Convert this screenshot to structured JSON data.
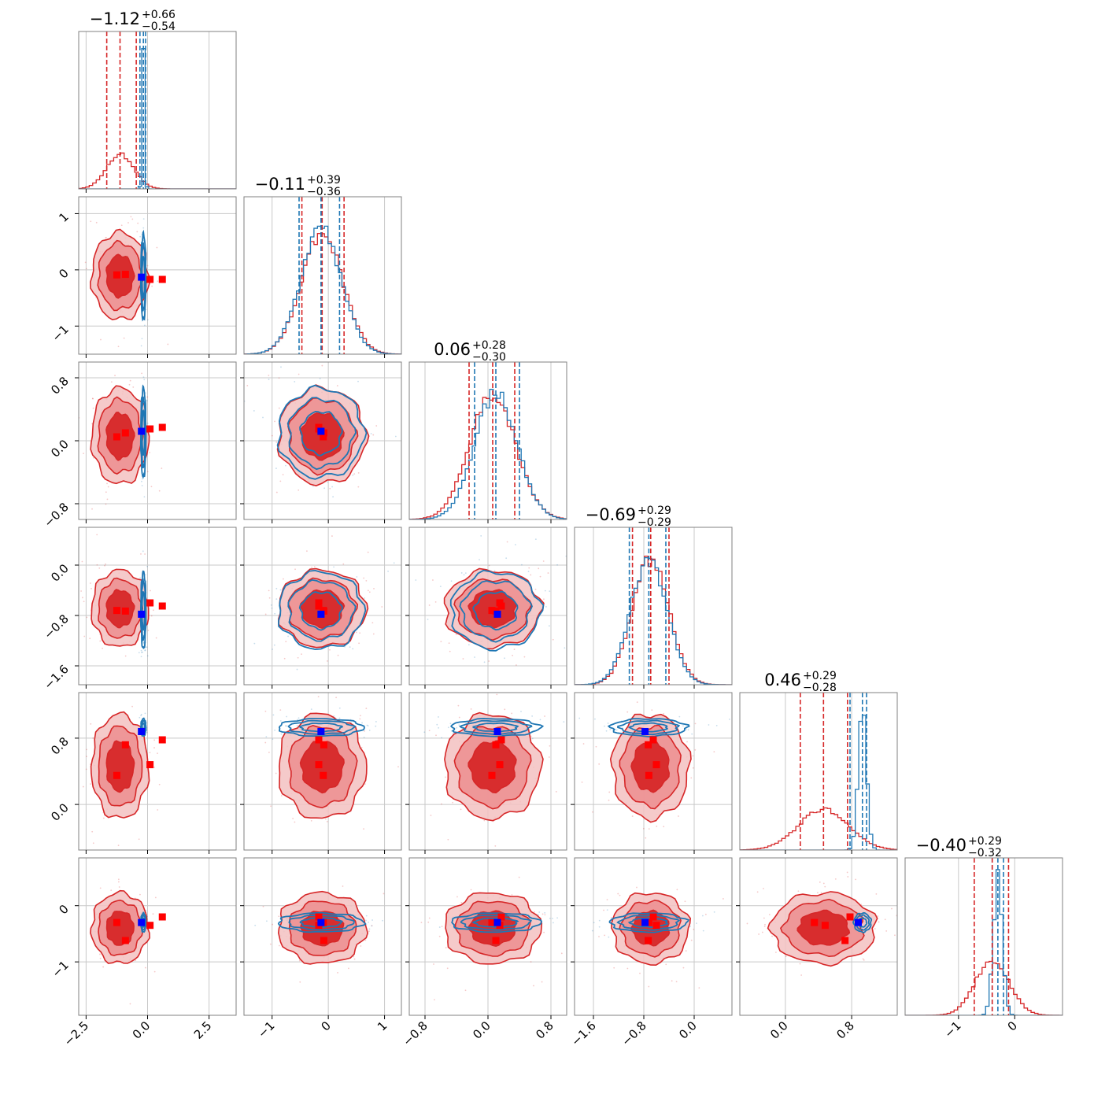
{
  "chart_data": {
    "type": "corner",
    "grid": true,
    "colors": {
      "series_a": "#d62728",
      "series_b": "#1f77b4",
      "truth_a_marker": "#ff0000",
      "truth_b_marker": "#0000ff",
      "grid": "#c8c8c8",
      "frame": "#808080"
    },
    "parameters": [
      {
        "title": {
          "median": "−1.12",
          "plus": "+0.66",
          "minus": "−0.54"
        },
        "range": [
          -2.8,
          3.6
        ],
        "ticks": [
          -2.5,
          0.0,
          2.5
        ],
        "tick_labels": [
          "−2.5",
          "0.0",
          "2.5"
        ],
        "hist_a": {
          "mean": -1.12,
          "sd": 0.55,
          "peak": 0.22
        },
        "hist_b": {
          "mean": -0.17,
          "sd": 0.05,
          "peak": 0.9
        },
        "quantiles_a": [
          -1.66,
          -0.46
        ],
        "quantiles_b": [
          -0.31,
          -0.08
        ]
      },
      {
        "title": {
          "median": "−0.11",
          "plus": "+0.39",
          "minus": "−0.36"
        },
        "range": [
          -1.5,
          1.3
        ],
        "ticks": [
          -1,
          0,
          1
        ],
        "tick_labels": [
          "−1",
          "0",
          "1"
        ],
        "hist_a": {
          "mean": -0.11,
          "sd": 0.37,
          "peak": 0.76
        },
        "hist_b": {
          "mean": -0.13,
          "sd": 0.36,
          "peak": 0.8
        },
        "quantiles_a": [
          -0.47,
          0.28
        ],
        "quantiles_b": [
          -0.52,
          0.2
        ]
      },
      {
        "title": {
          "median": "0.06",
          "plus": "+0.28",
          "minus": "−0.30"
        },
        "range": [
          -1.0,
          1.0
        ],
        "ticks": [
          -0.8,
          0.0,
          0.8
        ],
        "tick_labels": [
          "−0.8",
          "0.0",
          "0.8"
        ],
        "hist_a": {
          "mean": 0.06,
          "sd": 0.29,
          "peak": 0.8
        },
        "hist_b": {
          "mean": 0.1,
          "sd": 0.27,
          "peak": 0.8
        },
        "quantiles_a": [
          -0.24,
          0.34
        ],
        "quantiles_b": [
          -0.17,
          0.4
        ]
      },
      {
        "title": {
          "median": "−0.69",
          "plus": "+0.29",
          "minus": "−0.29"
        },
        "range": [
          -1.9,
          0.6
        ],
        "ticks": [
          -1.6,
          -0.8,
          0.0
        ],
        "tick_labels": [
          "−1.6",
          "−0.8",
          "0.0"
        ],
        "hist_a": {
          "mean": -0.69,
          "sd": 0.29,
          "peak": 0.8
        },
        "hist_b": {
          "mean": -0.72,
          "sd": 0.29,
          "peak": 0.8
        },
        "quantiles_a": [
          -0.98,
          -0.4
        ],
        "quantiles_b": [
          -1.03,
          -0.45
        ]
      },
      {
        "title": {
          "median": "0.46",
          "plus": "+0.29",
          "minus": "−0.28"
        },
        "range": [
          -0.55,
          1.35
        ],
        "ticks": [
          0.0,
          0.8
        ],
        "tick_labels": [
          "0.0",
          "0.8"
        ],
        "hist_a": {
          "mean": 0.46,
          "sd": 0.3,
          "peak": 0.26
        },
        "hist_b": {
          "mean": 0.93,
          "sd": 0.05,
          "peak": 0.9
        },
        "quantiles_a": [
          0.18,
          0.75
        ],
        "quantiles_b": [
          0.78,
          0.98
        ]
      },
      {
        "title": {
          "median": "−0.40",
          "plus": "+0.29",
          "minus": "−0.32"
        },
        "range": [
          -1.95,
          0.85
        ],
        "ticks": [
          -1,
          0
        ],
        "tick_labels": [
          "−1",
          "0"
        ],
        "hist_a": {
          "mean": -0.4,
          "sd": 0.3,
          "peak": 0.35
        },
        "hist_b": {
          "mean": -0.3,
          "sd": 0.08,
          "peak": 0.88
        },
        "quantiles_a": [
          -0.72,
          -0.11
        ],
        "quantiles_b": [
          -0.4,
          -0.2
        ]
      }
    ],
    "series": [
      {
        "color": "#d62728",
        "means": [
          -1.12,
          -0.11,
          0.06,
          -0.69,
          0.46,
          -0.4
        ],
        "sds": [
          0.55,
          0.37,
          0.29,
          0.29,
          0.3,
          0.3
        ]
      },
      {
        "color": "#1f77b4",
        "means": [
          -0.17,
          -0.13,
          0.1,
          -0.72,
          0.93,
          -0.3
        ],
        "sds": [
          0.05,
          0.36,
          0.27,
          0.29,
          0.05,
          0.08
        ]
      }
    ],
    "markers": {
      "red_points": [
        [
          -1.25,
          -0.09,
          0.05,
          -0.72,
          0.35,
          -0.3
        ],
        [
          -0.9,
          -0.08,
          0.1,
          -0.73,
          0.72,
          -0.62
        ],
        [
          0.1,
          -0.17,
          0.15,
          -0.6,
          0.48,
          -0.35
        ],
        [
          0.6,
          -0.17,
          0.17,
          -0.65,
          0.78,
          -0.2
        ]
      ],
      "blue_point": [
        -0.25,
        -0.13,
        0.12,
        -0.78,
        0.88,
        -0.3
      ]
    }
  }
}
